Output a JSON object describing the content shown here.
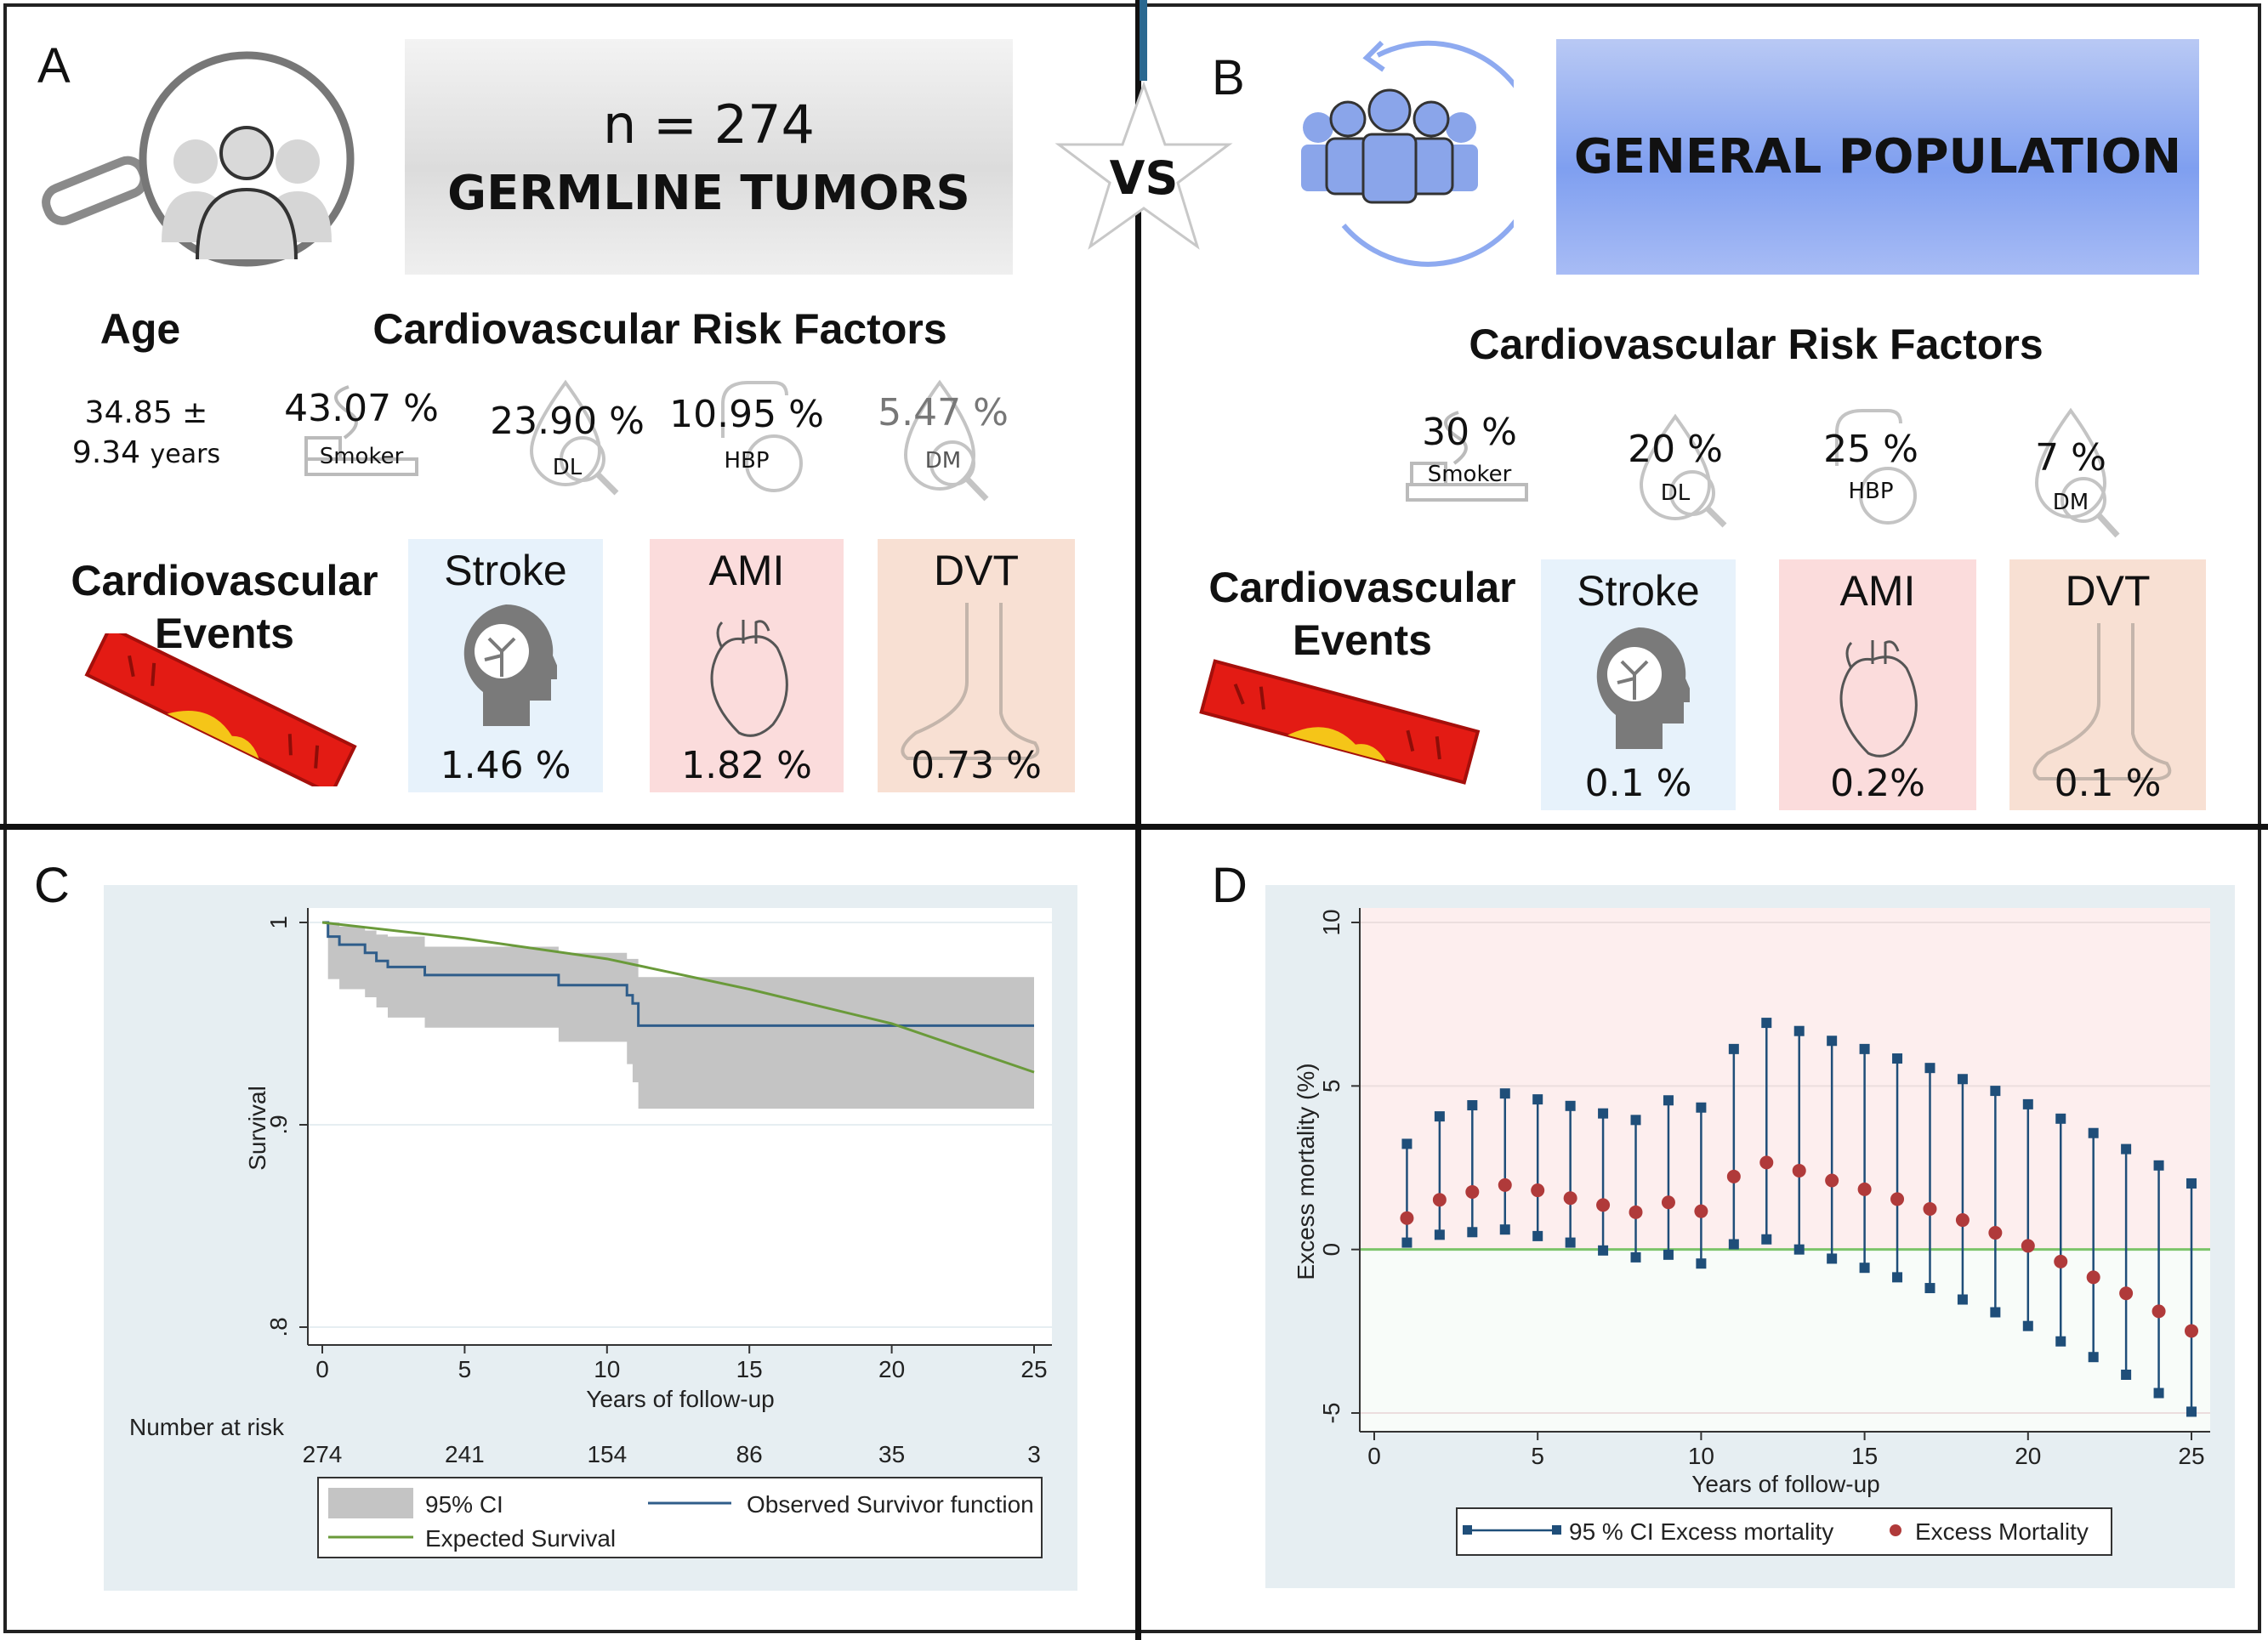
{
  "vs_label": "VS",
  "panel_a": {
    "label": "A",
    "n_text": "n = 274",
    "title": "GERMLINE TUMORS",
    "age_title": "Age",
    "age_line1": "34.85 ±",
    "age_line2_value": "9.34",
    "age_line2_unit": "years",
    "risk_title": "Cardiovascular Risk Factors",
    "risk_factors": [
      {
        "value": "43.07 %",
        "label": "Smoker",
        "icon": "cigarette-icon"
      },
      {
        "value": "23.90 %",
        "label": "DL",
        "icon": "blood-drop-magnifier-icon"
      },
      {
        "value": "10.95 %",
        "label": "HBP",
        "icon": "blood-pressure-icon"
      },
      {
        "value": "5.47 %",
        "label": "DM",
        "icon": "glucose-drop-icon"
      }
    ],
    "events_title_1": "Cardiovascular",
    "events_title_2": "Events",
    "events": [
      {
        "label": "Stroke",
        "value": "1.46 %",
        "icon": "brain-head-icon"
      },
      {
        "label": "AMI",
        "value": "1.82 %",
        "icon": "heart-icon"
      },
      {
        "label": "DVT",
        "value": "0.73 %",
        "icon": "foot-icon"
      }
    ]
  },
  "panel_b": {
    "label": "B",
    "title": "GENERAL POPULATION",
    "risk_title": "Cardiovascular Risk Factors",
    "risk_factors": [
      {
        "value": "30 %",
        "label": "Smoker",
        "icon": "cigarette-icon"
      },
      {
        "value": "20 %",
        "label": "DL",
        "icon": "blood-drop-magnifier-icon"
      },
      {
        "value": "25 %",
        "label": "HBP",
        "icon": "blood-pressure-icon"
      },
      {
        "value": "7 %",
        "label": "DM",
        "icon": "glucose-drop-icon"
      }
    ],
    "events_title_1": "Cardiovascular",
    "events_title_2": "Events",
    "events": [
      {
        "label": "Stroke",
        "value": "0.1 %",
        "icon": "brain-head-icon"
      },
      {
        "label": "AMI",
        "value": "0.2%",
        "icon": "heart-icon"
      },
      {
        "label": "DVT",
        "value": "0.1 %",
        "icon": "foot-icon"
      }
    ]
  },
  "panel_c": {
    "label": "C"
  },
  "panel_d": {
    "label": "D"
  },
  "colors": {
    "stroke_box": "#e7f2fb",
    "ami_box": "#fbdcdc",
    "dvt_box": "#f8e0d3",
    "observed": "#2f5d8a",
    "expected": "#6a9a3a",
    "ci_fill": "#c4c4c4",
    "ci_marker": "#1f4e79",
    "excess_marker": "#b03a3a",
    "zero_line": "#7cc46a"
  },
  "chart_data": [
    {
      "type": "line",
      "xlabel": "Years of follow-up",
      "ylabel": "Survival",
      "xlim": [
        0,
        25
      ],
      "ylim": [
        0.8,
        1
      ],
      "xticks": [
        "0",
        "5",
        "10",
        "15",
        "20",
        "25"
      ],
      "yticks": [
        "1",
        ".9",
        ".8"
      ],
      "ytick_values": [
        1,
        0.9,
        0.8
      ],
      "grid": true,
      "risk_table_label": "Number at risk",
      "number_at_risk": [
        "274",
        "241",
        "154",
        "86",
        "35",
        "3"
      ],
      "legend": [
        "95% CI",
        "Observed Survivor function",
        "Expected Survival"
      ],
      "legend_position": "bottom",
      "observed_steps": [
        [
          0,
          1
        ],
        [
          0.2,
          0.993
        ],
        [
          0.6,
          0.989
        ],
        [
          1.5,
          0.985
        ],
        [
          1.9,
          0.981
        ],
        [
          2.3,
          0.978
        ],
        [
          3.6,
          0.974
        ],
        [
          8.3,
          0.969
        ],
        [
          10.7,
          0.964
        ],
        [
          10.9,
          0.96
        ],
        [
          11.1,
          0.949
        ],
        [
          25,
          0.949
        ]
      ],
      "ci_steps": [
        [
          0,
          1,
          1
        ],
        [
          0.2,
          0.972,
          1
        ],
        [
          0.6,
          0.967,
          0.998
        ],
        [
          1.5,
          0.963,
          0.996
        ],
        [
          1.9,
          0.958,
          0.994
        ],
        [
          2.3,
          0.953,
          0.993
        ],
        [
          3.6,
          0.948,
          0.988
        ],
        [
          8.3,
          0.941,
          0.985
        ],
        [
          10.7,
          0.93,
          0.982
        ],
        [
          10.9,
          0.921,
          0.982
        ],
        [
          11.1,
          0.908,
          0.973
        ],
        [
          25,
          0.908,
          0.973
        ]
      ],
      "expected": [
        [
          0,
          1
        ],
        [
          5,
          0.992
        ],
        [
          10,
          0.982
        ],
        [
          15,
          0.967
        ],
        [
          20,
          0.95
        ],
        [
          25,
          0.926
        ]
      ]
    },
    {
      "type": "scatter",
      "xlabel": "Years of follow-up",
      "ylabel": "Excess mortality (%)",
      "xlim": [
        0,
        25
      ],
      "ylim": [
        -5,
        10
      ],
      "xticks": [
        "0",
        "5",
        "10",
        "15",
        "20",
        "25"
      ],
      "yticks": [
        "10",
        "5",
        "0",
        "-5"
      ],
      "ytick_values": [
        10,
        5,
        0,
        -5
      ],
      "grid": true,
      "legend": [
        "95 % CI Excess mortality",
        "Excess Mortality"
      ],
      "legend_position": "bottom",
      "x": [
        1,
        2,
        3,
        4,
        5,
        6,
        7,
        8,
        9,
        10,
        11,
        12,
        13,
        14,
        15,
        16,
        17,
        18,
        19,
        20,
        21,
        22,
        23,
        24,
        25
      ],
      "excess": [
        0.96,
        1.52,
        1.76,
        1.97,
        1.81,
        1.57,
        1.36,
        1.14,
        1.44,
        1.17,
        2.23,
        2.66,
        2.41,
        2.11,
        1.84,
        1.54,
        1.24,
        0.9,
        0.51,
        0.11,
        -0.37,
        -0.85,
        -1.34,
        -1.89,
        -2.49
      ],
      "ci_upper": [
        3.23,
        4.07,
        4.41,
        4.77,
        4.59,
        4.39,
        4.16,
        3.96,
        4.56,
        4.34,
        6.13,
        6.93,
        6.68,
        6.38,
        6.13,
        5.84,
        5.55,
        5.21,
        4.85,
        4.44,
        4.0,
        3.56,
        3.07,
        2.57,
        2.02
      ],
      "ci_lower": [
        0.21,
        0.45,
        0.53,
        0.61,
        0.41,
        0.21,
        -0.03,
        -0.24,
        -0.16,
        -0.43,
        0.16,
        0.31,
        0,
        -0.28,
        -0.56,
        -0.85,
        -1.18,
        -1.53,
        -1.92,
        -2.34,
        -2.81,
        -3.29,
        -3.83,
        -4.39,
        -4.96
      ]
    }
  ]
}
